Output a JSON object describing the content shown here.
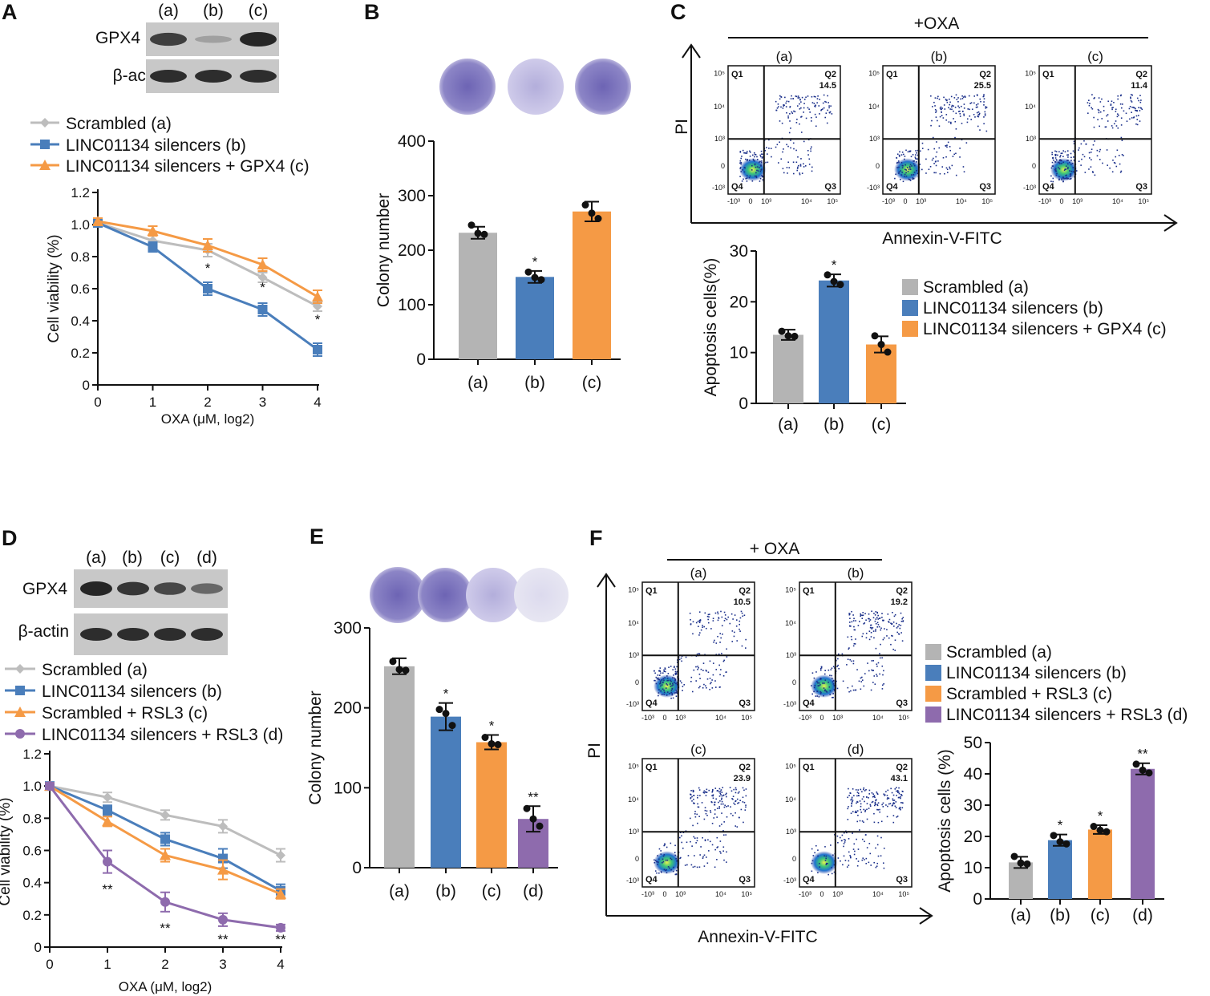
{
  "figure": {
    "panels": {
      "A": {
        "letter": "A",
        "blot_lanes": [
          "(a)",
          "(b)",
          "(c)"
        ],
        "blot_rows": [
          "GPX4",
          "β-actin"
        ],
        "gpx4_band_intensity": [
          0.85,
          0.25,
          1.0
        ]
      },
      "B": {
        "letter": "B"
      },
      "C": {
        "letter": "C",
        "treatment": "+OXA",
        "flow_plots": [
          {
            "label": "(a)",
            "q2_value": "14.5"
          },
          {
            "label": "(b)",
            "q2_value": "25.5"
          },
          {
            "label": "(c)",
            "q2_value": "11.4"
          }
        ],
        "y_axis": "PI",
        "x_axis": "Annexin-V-FITC",
        "quadrants": [
          "Q1",
          "Q2",
          "Q3",
          "Q4"
        ],
        "flow_ticks_y": [
          "10⁵",
          "10⁴",
          "10³",
          "0",
          "-10³"
        ],
        "flow_ticks_x": [
          "-10³",
          "0",
          "10³",
          "10⁴",
          "10⁵"
        ]
      },
      "D": {
        "letter": "D",
        "blot_lanes": [
          "(a)",
          "(b)",
          "(c)",
          "(d)"
        ],
        "blot_rows": [
          "GPX4",
          "β-actin"
        ],
        "gpx4_band_intensity": [
          1.0,
          0.9,
          0.8,
          0.6
        ]
      },
      "E": {
        "letter": "E"
      },
      "F": {
        "letter": "F",
        "treatment": "+ OXA",
        "flow_plots": [
          {
            "label": "(a)",
            "q2_value": "10.5"
          },
          {
            "label": "(b)",
            "q2_value": "19.2"
          },
          {
            "label": "(c)",
            "q2_value": "23.9"
          },
          {
            "label": "(d)",
            "q2_value": "43.1"
          }
        ],
        "y_axis": "PI",
        "x_axis": "Annexin-V-FITC",
        "quadrants": [
          "Q1",
          "Q2",
          "Q3",
          "Q4"
        ],
        "flow_ticks_y": [
          "10⁵",
          "10⁴",
          "10³",
          "0",
          "-10³"
        ],
        "flow_ticks_x": [
          "-10³",
          "0",
          "10³",
          "10⁴",
          "10⁵"
        ]
      }
    }
  },
  "chart_data": [
    {
      "id": "A-line",
      "type": "line",
      "x": [
        0,
        1,
        2,
        3,
        4
      ],
      "xlabel": "OXA (μM, log2)",
      "ylabel": "Cell viability (%)",
      "ylim": [
        0,
        1.2
      ],
      "yticks": [
        "0",
        "0.2",
        "0.4",
        "0.6",
        "0.8",
        "1.0",
        "1.2"
      ],
      "series": [
        {
          "name": "Scrambled (a)",
          "color": "#bdbdbd",
          "marker": "diamond",
          "values": [
            1.01,
            0.9,
            0.84,
            0.67,
            0.49
          ],
          "errors": [
            0.02,
            0.03,
            0.04,
            0.03,
            0.03
          ]
        },
        {
          "name": "LINC01134 silencers (b)",
          "color": "#4a7ebb",
          "marker": "square",
          "values": [
            1.01,
            0.86,
            0.6,
            0.47,
            0.22
          ],
          "errors": [
            0.02,
            0.03,
            0.04,
            0.04,
            0.04
          ]
        },
        {
          "name": "LINC01134 silencers + GPX4 (c)",
          "color": "#f59a45",
          "marker": "triangle",
          "values": [
            1.02,
            0.96,
            0.87,
            0.75,
            0.55
          ],
          "errors": [
            0.02,
            0.03,
            0.04,
            0.04,
            0.04
          ]
        }
      ],
      "annotations": [
        {
          "x": 2,
          "text": "*"
        },
        {
          "x": 3,
          "text": "*"
        },
        {
          "x": 4,
          "text": "*"
        }
      ]
    },
    {
      "id": "B-bar",
      "type": "bar",
      "categories": [
        "(a)",
        "(b)",
        "(c)"
      ],
      "values": [
        232,
        151,
        271
      ],
      "errors": [
        11,
        11,
        18
      ],
      "points": [
        [
          246,
          231,
          229
        ],
        [
          160,
          150,
          146
        ],
        [
          283,
          268,
          258
        ]
      ],
      "colors": [
        "#b4b4b4",
        "#4a7ebb",
        "#f59a45"
      ],
      "ylabel": "Colony number",
      "ylim": [
        0,
        400
      ],
      "yticks": [
        "0",
        "100",
        "200",
        "300",
        "400"
      ],
      "annotations": [
        "",
        "*",
        ""
      ]
    },
    {
      "id": "C-bar",
      "type": "bar",
      "categories": [
        "(a)",
        "(b)",
        "(c)"
      ],
      "values": [
        13.5,
        24.2,
        11.6
      ],
      "errors": [
        1.0,
        1.2,
        1.6
      ],
      "points": [
        [
          14.2,
          13.3,
          13.2
        ],
        [
          25.3,
          24.0,
          23.4
        ],
        [
          13.3,
          11.6,
          10.1
        ]
      ],
      "colors": [
        "#b4b4b4",
        "#4a7ebb",
        "#f59a45"
      ],
      "ylabel": "Apoptosis cells(%)",
      "ylim": [
        0,
        30
      ],
      "yticks": [
        "0",
        "10",
        "20",
        "30"
      ],
      "annotations": [
        "",
        "*",
        ""
      ],
      "legend": [
        "Scrambled (a)",
        "LINC01134 silencers (b)",
        "LINC01134 silencers + GPX4 (c)"
      ]
    },
    {
      "id": "D-line",
      "type": "line",
      "x": [
        0,
        1,
        2,
        3,
        4
      ],
      "xlabel": "OXA (μM, log2)",
      "ylabel": "Cell viability (%)",
      "ylim": [
        0,
        1.2
      ],
      "yticks": [
        "0",
        "0.2",
        "0.4",
        "0.6",
        "0.8",
        "1.0",
        "1.2"
      ],
      "series": [
        {
          "name": "Scrambled (a)",
          "color": "#bdbdbd",
          "marker": "diamond",
          "values": [
            1.0,
            0.93,
            0.82,
            0.75,
            0.57
          ],
          "errors": [
            0.02,
            0.03,
            0.03,
            0.04,
            0.04
          ]
        },
        {
          "name": "LINC01134 silencers (b)",
          "color": "#4a7ebb",
          "marker": "square",
          "values": [
            1.0,
            0.85,
            0.67,
            0.55,
            0.35
          ],
          "errors": [
            0.02,
            0.03,
            0.04,
            0.06,
            0.04
          ]
        },
        {
          "name": "Scrambled + RSL3 (c)",
          "color": "#f59a45",
          "marker": "triangle",
          "values": [
            1.0,
            0.78,
            0.57,
            0.48,
            0.33
          ],
          "errors": [
            0.02,
            0.03,
            0.04,
            0.06,
            0.03
          ]
        },
        {
          "name": "LINC01134 silencers + RSL3 (d)",
          "color": "#8e6bad",
          "marker": "circle",
          "values": [
            1.0,
            0.53,
            0.28,
            0.17,
            0.12
          ],
          "errors": [
            0.02,
            0.07,
            0.06,
            0.04,
            0.02
          ]
        }
      ],
      "annotations": [
        {
          "x": 1,
          "text": "**"
        },
        {
          "x": 2,
          "text": "**"
        },
        {
          "x": 3,
          "text": "**"
        },
        {
          "x": 4,
          "text": "**"
        }
      ]
    },
    {
      "id": "E-bar",
      "type": "bar",
      "categories": [
        "(a)",
        "(b)",
        "(c)",
        "(d)"
      ],
      "values": [
        252,
        189,
        157,
        61
      ],
      "errors": [
        10,
        17,
        9,
        16
      ],
      "points": [
        [
          258,
          248,
          247
        ],
        [
          198,
          193,
          178
        ],
        [
          163,
          155,
          154
        ],
        [
          74,
          61,
          52
        ]
      ],
      "colors": [
        "#b4b4b4",
        "#4a7ebb",
        "#f59a45",
        "#8e6bad"
      ],
      "ylabel": "Colony number",
      "ylim": [
        0,
        300
      ],
      "yticks": [
        "0",
        "100",
        "200",
        "300"
      ],
      "annotations": [
        "",
        "*",
        "*",
        "**"
      ]
    },
    {
      "id": "F-bar",
      "type": "bar",
      "categories": [
        "(a)",
        "(b)",
        "(c)",
        "(d)"
      ],
      "values": [
        11.7,
        18.8,
        22.2,
        41.6
      ],
      "errors": [
        1.8,
        1.8,
        1.4,
        1.8
      ],
      "points": [
        [
          13.6,
          11.5,
          11.2
        ],
        [
          20.3,
          18.3,
          17.6
        ],
        [
          23.2,
          22.0,
          21.5
        ],
        [
          43.1,
          41.2,
          40.3
        ]
      ],
      "colors": [
        "#b4b4b4",
        "#4a7ebb",
        "#f59a45",
        "#8e6bad"
      ],
      "ylabel": "Apoptosis cells (%)",
      "ylim": [
        0,
        50
      ],
      "yticks": [
        "0",
        "10",
        "20",
        "30",
        "40",
        "50"
      ],
      "annotations": [
        "",
        "*",
        "*",
        "**"
      ],
      "legend": [
        "Scrambled (a)",
        "LINC01134 silencers (b)",
        "Scrambled + RSL3 (c)",
        "LINC01134 silencers + RSL3 (d)"
      ]
    }
  ]
}
